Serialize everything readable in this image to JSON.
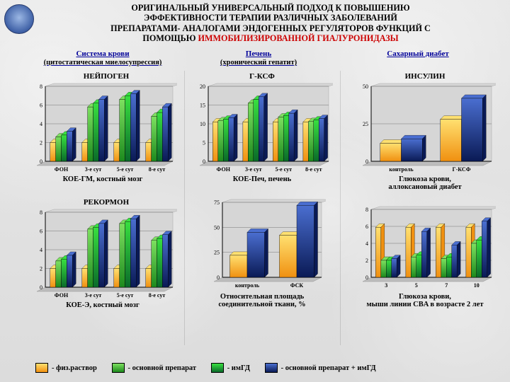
{
  "title": {
    "line1": "ОРИГИНАЛЬНЫЙ УНИВЕРСАЛЬНЫЙ ПОДХОД К ПОВЫШЕНИЮ",
    "line2": "ЭФФЕКТИВНОСТИ ТЕРАПИИ РАЗЛИЧНЫХ ЗАБОЛЕВАНИЙ",
    "line3": "ПРЕПАРАТАМИ- АНАЛОГАМИ ЭНДОГЕННЫХ РЕГУЛЯТОРОВ ФУНКЦИЙ С",
    "line4a": "ПОМОЩЬЮ ",
    "line4b": "ИММОБИЛИЗИРОВАННОЙ ГИАЛУРОНИДАЗЫ"
  },
  "sections": {
    "blood": {
      "heading": "Система крови",
      "sub": "(цитостатическая миелосупрессия)"
    },
    "liver": {
      "heading": "Печень",
      "sub": "(хронический гепатит)"
    },
    "diabetes": {
      "heading": "Сахарный диабет",
      "sub": ""
    }
  },
  "colors": {
    "c1_top": "#ffe070",
    "c1_bot": "#f09010",
    "c2_top": "#7de060",
    "c2_bot": "#1d8a1d",
    "c3_top": "#38e040",
    "c3_bot": "#0a6a2a",
    "c4_top": "#4a6ed0",
    "c4_bot": "#0a1a55",
    "axis": "#000000",
    "grid": "#707070",
    "plotbg": "#d6d6d6"
  },
  "legend": {
    "i1": "- физ.раствор",
    "i2": "- основной препарат",
    "i3": "- имГД",
    "i4": "- основной препарат + имГД"
  },
  "charts": {
    "neipogen": {
      "title": "НЕЙПОГЕН",
      "caption": "КОЕ-ГМ, костный мозг",
      "ylim": [
        0,
        8
      ],
      "ystep": 2,
      "categories": [
        "ФОН",
        "3-е сут",
        "5-е сут",
        "8-е сут"
      ],
      "series4": true,
      "data": [
        [
          2.0,
          2.0,
          2.0,
          2.0
        ],
        [
          2.6,
          5.8,
          6.6,
          4.8
        ],
        [
          2.8,
          6.2,
          7.0,
          5.2
        ],
        [
          3.2,
          6.6,
          7.2,
          5.8
        ]
      ]
    },
    "rekormon": {
      "title": "РЕКОРМОН",
      "caption": "КОЕ-Э, костный мозг",
      "ylim": [
        0,
        8
      ],
      "ystep": 2,
      "categories": [
        "ФОН",
        "3-е сут",
        "5-е сут",
        "8-е сут"
      ],
      "series4": true,
      "data": [
        [
          2.0,
          2.0,
          2.0,
          2.0
        ],
        [
          2.8,
          6.2,
          6.8,
          5.0
        ],
        [
          3.0,
          6.4,
          7.0,
          5.2
        ],
        [
          3.4,
          6.8,
          7.3,
          5.6
        ]
      ]
    },
    "gksf": {
      "title": "Г-КСФ",
      "caption": "КОЕ-Печ, печень",
      "ylim": [
        0,
        20
      ],
      "ystep": 5,
      "categories": [
        "ФОН",
        "3-е сут",
        "5-е сут",
        "8-е сут"
      ],
      "series4": true,
      "data": [
        [
          10.5,
          10.5,
          10.5,
          10.5
        ],
        [
          10.8,
          15.5,
          11.8,
          10.6
        ],
        [
          11.2,
          16.5,
          12.2,
          11.0
        ],
        [
          11.6,
          17.2,
          12.8,
          11.4
        ]
      ]
    },
    "otn": {
      "title": "",
      "caption": "Относительная площадь\nсоединительной ткани, %",
      "ylim": [
        0,
        75
      ],
      "ystep": 25,
      "categories": [
        "контроль",
        "ФСК"
      ],
      "series2": true,
      "data": [
        [
          22,
          42
        ],
        [
          45,
          72
        ]
      ]
    },
    "insulin": {
      "title": "ИНСУЛИН",
      "caption": "Глюкоза крови,\nаллоксановый диабет",
      "ylim": [
        0,
        50
      ],
      "ystep": 25,
      "categories": [
        "контроль",
        "Г-КСФ"
      ],
      "series2": true,
      "data": [
        [
          12,
          28
        ],
        [
          15,
          42
        ]
      ]
    },
    "cba": {
      "title": "",
      "caption": "Глюкоза крови,\nмыши линии CBA в возрасте 2 лет",
      "ylim": [
        0,
        8
      ],
      "ystep": 2,
      "categories": [
        "3",
        "5",
        "7",
        "10"
      ],
      "series4": true,
      "data": [
        [
          5.9,
          5.9,
          5.9,
          5.9
        ],
        [
          2.0,
          2.4,
          2.2,
          4.0
        ],
        [
          2.0,
          2.6,
          2.4,
          4.4
        ],
        [
          2.2,
          5.4,
          3.8,
          6.6
        ]
      ]
    }
  }
}
